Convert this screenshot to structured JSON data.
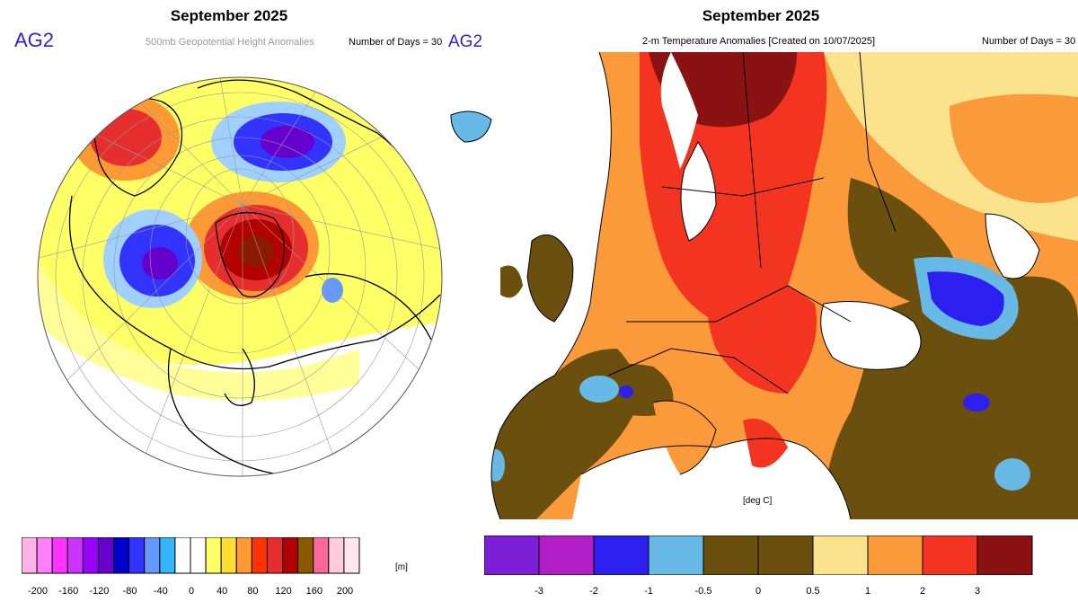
{
  "left": {
    "title": "September 2025",
    "brand": "AG2",
    "subtitle": "500mb Geopotential Height Anomalies",
    "days": "Number of Days = 30",
    "unit": "[m]",
    "colorbar": {
      "colors": [
        "#ffb3e6",
        "#ff80ff",
        "#ff33ff",
        "#cc33ff",
        "#9900ff",
        "#6600cc",
        "#0000cc",
        "#3333ff",
        "#6699ff",
        "#33b5ff",
        "#ffffff",
        "#ffffff",
        "#ffff66",
        "#ffdd33",
        "#ff9933",
        "#ff3300",
        "#e62e2e",
        "#b30000",
        "#8b5a00",
        "#ff6699",
        "#ffccdd",
        "#ffe6ee"
      ],
      "ticks": [
        "-200",
        "-160",
        "-120",
        "-80",
        "-40",
        "0",
        "40",
        "80",
        "120",
        "160",
        "200"
      ]
    }
  },
  "right": {
    "title": "September 2025",
    "brand": "AG2",
    "subtitle": "2-m Temperature Anomalies [Created on 10/07/2025]",
    "days": "Number of Days = 30",
    "unit": "[deg C]",
    "colorbar": {
      "colors": [
        "#7a1fd6",
        "#b31fc6",
        "#2d1ff0",
        "#67b9e6",
        "#6b4f0f",
        "#6b4f0f",
        "#fbe38e",
        "#fb9a3a",
        "#f33420",
        "#8b1212"
      ],
      "ticks": [
        "-3",
        "-2",
        "-1",
        "-0.5",
        "0",
        "0.5",
        "1",
        "2",
        "3"
      ]
    }
  }
}
